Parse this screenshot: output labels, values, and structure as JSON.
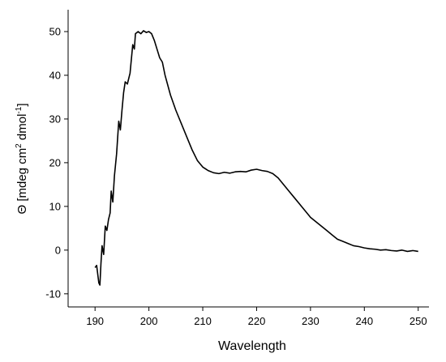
{
  "chart_data": {
    "type": "line",
    "title": "",
    "xlabel": "Wavelength",
    "ylabel_main": "Θ [mdeg cm",
    "ylabel_sup1": "2",
    "ylabel_mid": " dmol",
    "ylabel_sup2": "-1",
    "ylabel_end": "]",
    "xlim": [
      185,
      252
    ],
    "ylim": [
      -13,
      55
    ],
    "xticks": [
      190,
      200,
      210,
      220,
      230,
      240,
      250
    ],
    "xtick_labels": [
      "190",
      "200",
      "210",
      "220",
      "230",
      "240",
      "250"
    ],
    "yticks": [
      -10,
      0,
      10,
      20,
      30,
      40,
      50
    ],
    "ytick_labels": [
      "-10",
      "0",
      "10",
      "20",
      "30",
      "40",
      "50"
    ],
    "grid": false,
    "series": [
      {
        "line_color": "#000000",
        "x": [
          190.0,
          190.3,
          190.5,
          190.7,
          190.9,
          191.1,
          191.3,
          191.6,
          191.9,
          192.2,
          192.5,
          192.8,
          193.0,
          193.3,
          193.6,
          194.0,
          194.4,
          194.7,
          195.0,
          195.3,
          195.6,
          196.0,
          196.5,
          197.0,
          197.3,
          197.5,
          198.0,
          198.5,
          199.0,
          199.5,
          200.0,
          200.5,
          201.0,
          201.5,
          202.0,
          202.5,
          203.0,
          204.0,
          205.0,
          206.0,
          207.0,
          208.0,
          209.0,
          210.0,
          211.0,
          212.0,
          213.0,
          214.0,
          215.0,
          216.0,
          217.0,
          218.0,
          219.0,
          220.0,
          221.0,
          222.0,
          223.0,
          224.0,
          225.0,
          226.0,
          227.0,
          228.0,
          229.0,
          230.0,
          231.0,
          232.0,
          233.0,
          234.0,
          235.0,
          236.0,
          237.0,
          238.0,
          239.0,
          240.0,
          241.0,
          242.0,
          243.0,
          244.0,
          245.0,
          246.0,
          247.0,
          248.0,
          249.0,
          250.0
        ],
        "y": [
          -4.0,
          -3.5,
          -5.5,
          -7.5,
          -8.0,
          -3.0,
          1.0,
          -1.0,
          5.5,
          4.5,
          7.0,
          8.5,
          13.5,
          11.0,
          17.0,
          22.0,
          29.5,
          27.5,
          32.0,
          36.0,
          38.5,
          38.0,
          40.5,
          47.0,
          46.0,
          49.5,
          50.0,
          49.5,
          50.2,
          49.8,
          50.0,
          49.5,
          48.0,
          46.0,
          44.0,
          43.0,
          40.0,
          35.5,
          32.0,
          29.0,
          26.0,
          23.0,
          20.5,
          19.0,
          18.2,
          17.7,
          17.5,
          17.8,
          17.6,
          17.9,
          18.0,
          17.9,
          18.3,
          18.5,
          18.2,
          18.0,
          17.5,
          16.5,
          15.0,
          13.5,
          12.0,
          10.5,
          9.0,
          7.5,
          6.5,
          5.5,
          4.5,
          3.5,
          2.5,
          2.0,
          1.5,
          1.0,
          0.8,
          0.5,
          0.3,
          0.2,
          0.0,
          0.1,
          -0.1,
          -0.2,
          0.0,
          -0.3,
          -0.1,
          -0.3
        ]
      }
    ]
  }
}
